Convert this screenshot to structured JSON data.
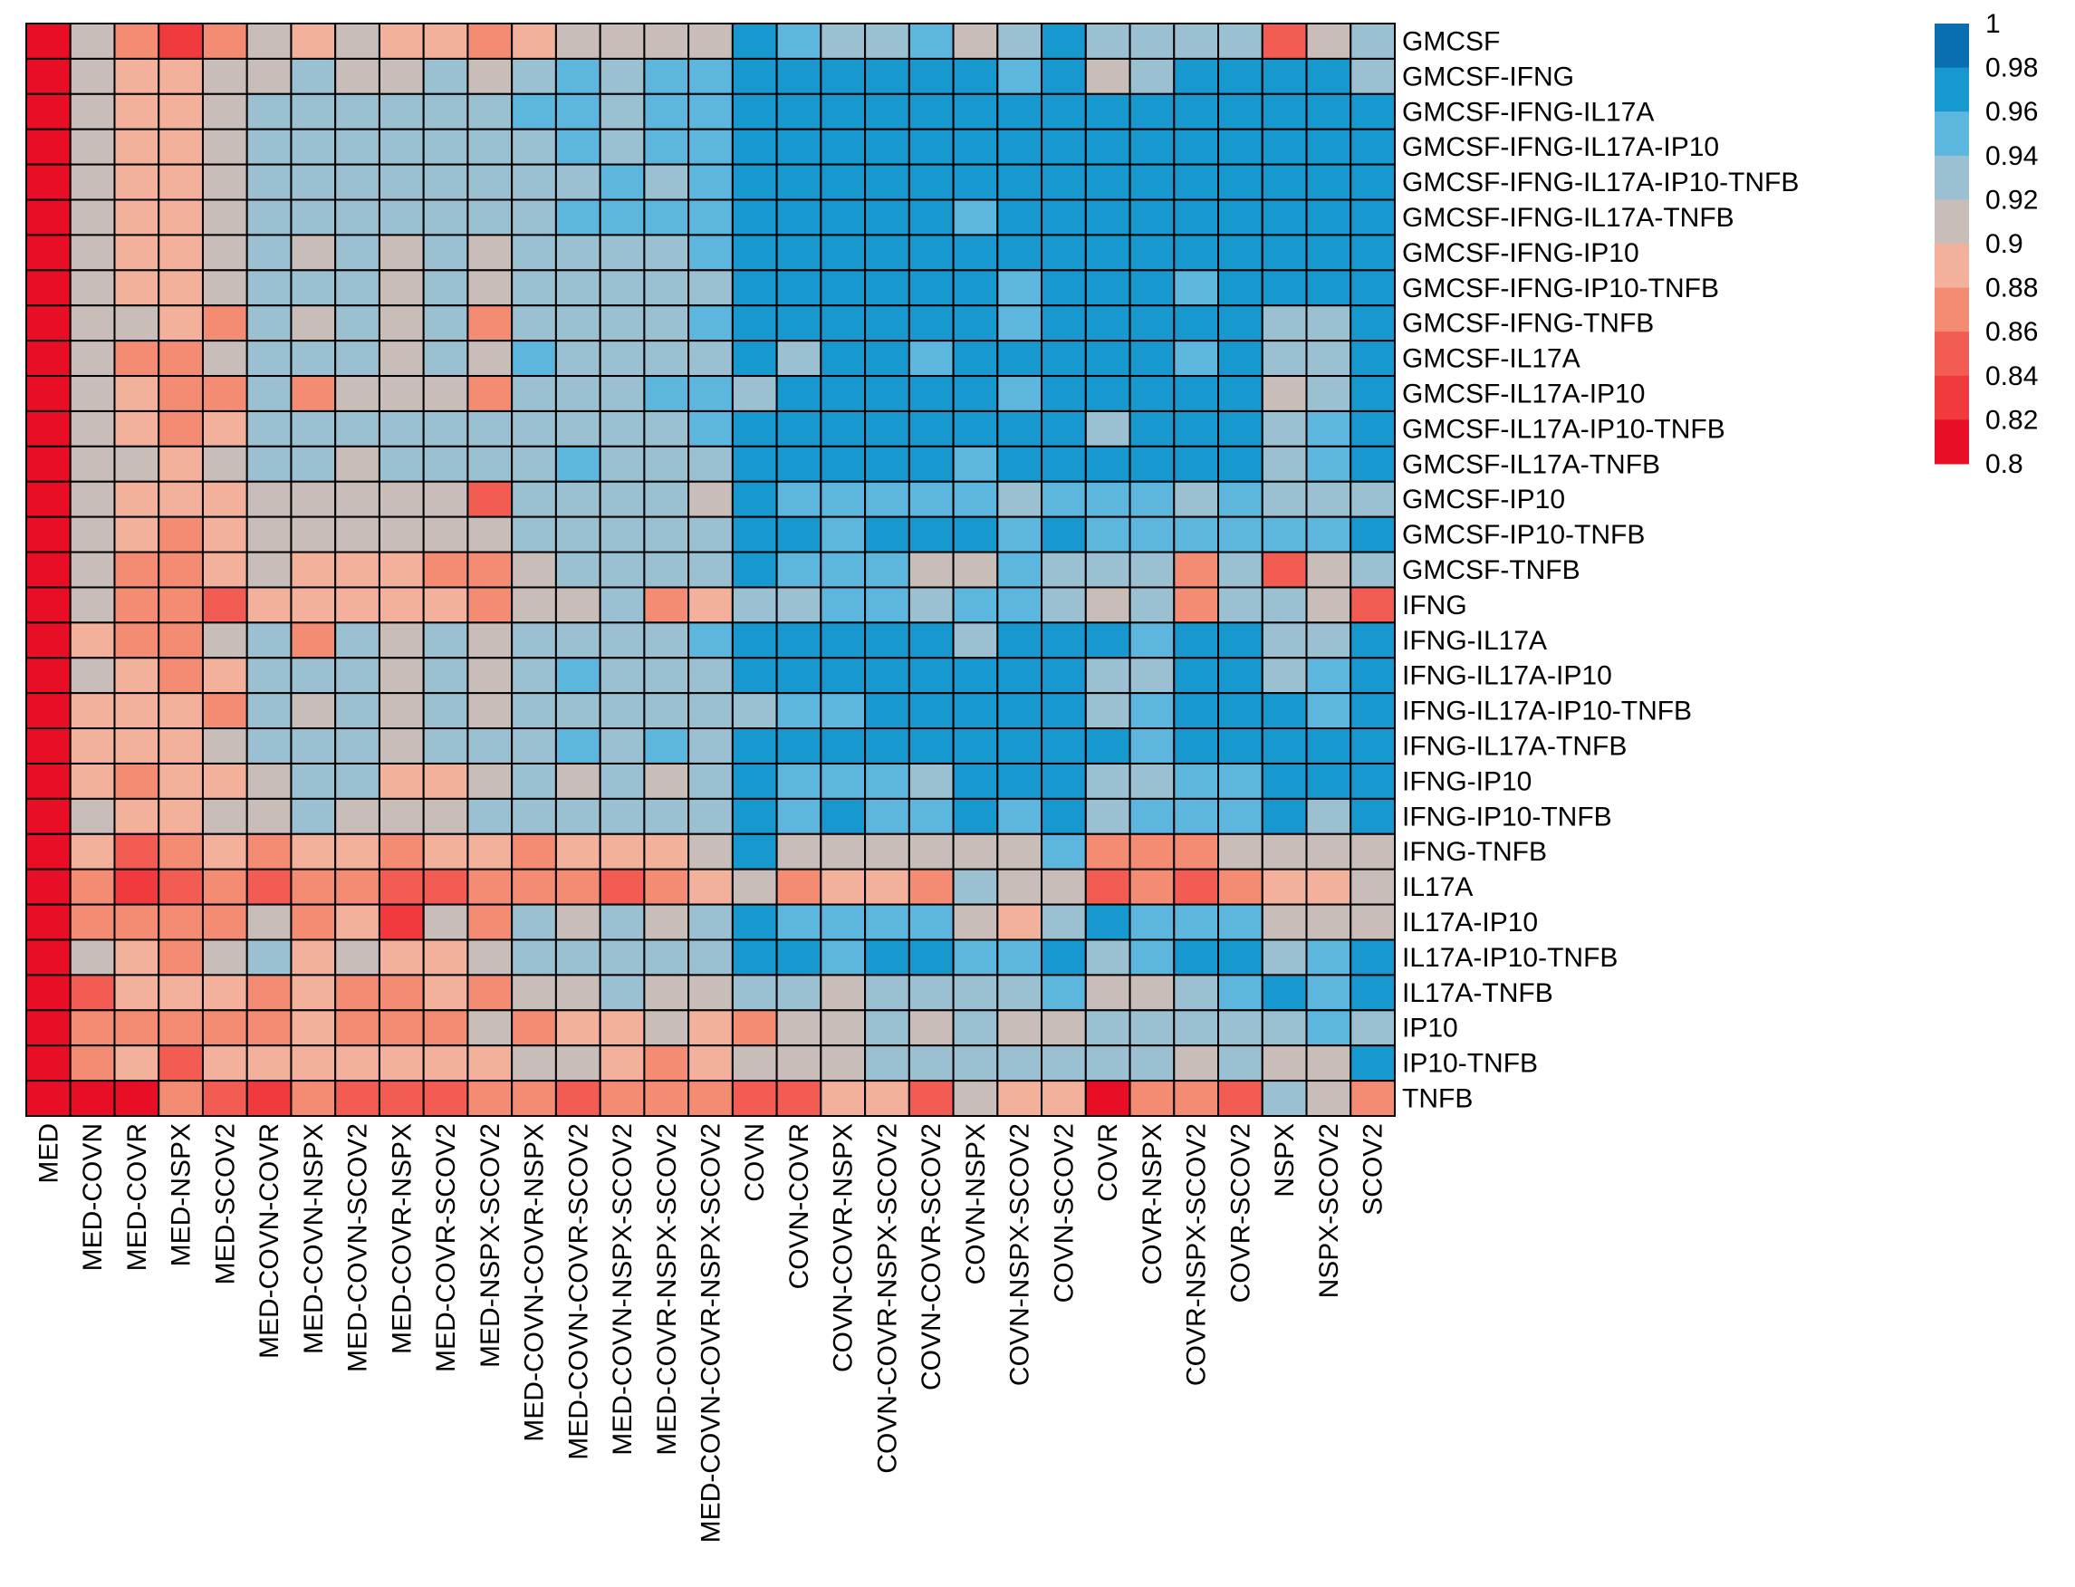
{
  "chart_data": {
    "type": "heatmap",
    "rows": [
      "GMCSF",
      "GMCSF-IFNG",
      "GMCSF-IFNG-IL17A",
      "GMCSF-IFNG-IL17A-IP10",
      "GMCSF-IFNG-IL17A-IP10-TNFB",
      "GMCSF-IFNG-IL17A-TNFB",
      "GMCSF-IFNG-IP10",
      "GMCSF-IFNG-IP10-TNFB",
      "GMCSF-IFNG-TNFB",
      "GMCSF-IL17A",
      "GMCSF-IL17A-IP10",
      "GMCSF-IL17A-IP10-TNFB",
      "GMCSF-IL17A-TNFB",
      "GMCSF-IP10",
      "GMCSF-IP10-TNFB",
      "GMCSF-TNFB",
      "IFNG",
      "IFNG-IL17A",
      "IFNG-IL17A-IP10",
      "IFNG-IL17A-IP10-TNFB",
      "IFNG-IL17A-TNFB",
      "IFNG-IP10",
      "IFNG-IP10-TNFB",
      "IFNG-TNFB",
      "IL17A",
      "IL17A-IP10",
      "IL17A-IP10-TNFB",
      "IL17A-TNFB",
      "IP10",
      "IP10-TNFB",
      "TNFB"
    ],
    "columns": [
      "MED",
      "MED-COVN",
      "MED-COVR",
      "MED-NSPX",
      "MED-SCOV2",
      "MED-COVN-COVR",
      "MED-COVN-NSPX",
      "MED-COVN-SCOV2",
      "MED-COVR-NSPX",
      "MED-COVR-SCOV2",
      "MED-NSPX-SCOV2",
      "MED-COVN-COVR-NSPX",
      "MED-COVN-COVR-SCOV2",
      "MED-COVN-NSPX-SCOV2",
      "MED-COVR-NSPX-SCOV2",
      "MED-COVN-COVR-NSPX-SCOV2",
      "COVN",
      "COVN-COVR",
      "COVN-COVR-NSPX",
      "COVN-COVR-NSPX-SCOV2",
      "COVN-COVR-SCOV2",
      "COVN-NSPX",
      "COVN-NSPX-SCOV2",
      "COVN-SCOV2",
      "COVR",
      "COVR-NSPX",
      "COVR-NSPX-SCOV2",
      "COVR-SCOV2",
      "NSPX",
      "NSPX-SCOV2",
      "SCOV2"
    ],
    "values": [
      [
        0.8,
        0.91,
        0.88,
        0.83,
        0.88,
        0.91,
        0.89,
        0.91,
        0.89,
        0.89,
        0.88,
        0.89,
        0.91,
        0.91,
        0.91,
        0.91,
        0.98,
        0.95,
        0.94,
        0.94,
        0.95,
        0.91,
        0.94,
        0.97,
        0.93,
        0.93,
        0.94,
        0.93,
        0.85,
        0.91,
        0.93
      ],
      [
        0.8,
        0.91,
        0.89,
        0.89,
        0.91,
        0.91,
        0.93,
        0.91,
        0.91,
        0.92,
        0.91,
        0.94,
        0.96,
        0.94,
        0.95,
        0.95,
        0.98,
        0.97,
        0.97,
        0.97,
        0.97,
        0.97,
        0.95,
        0.97,
        0.91,
        0.94,
        0.97,
        0.97,
        0.97,
        0.97,
        0.94
      ],
      [
        0.8,
        0.91,
        0.89,
        0.89,
        0.91,
        0.93,
        0.92,
        0.93,
        0.92,
        0.93,
        0.92,
        0.95,
        0.96,
        0.94,
        0.95,
        0.95,
        0.98,
        0.98,
        0.97,
        0.97,
        0.97,
        0.98,
        0.97,
        0.97,
        0.97,
        0.97,
        0.97,
        0.97,
        0.97,
        0.97,
        0.98
      ],
      [
        0.8,
        0.9,
        0.89,
        0.89,
        0.9,
        0.93,
        0.92,
        0.93,
        0.92,
        0.93,
        0.92,
        0.94,
        0.95,
        0.94,
        0.95,
        0.95,
        0.97,
        0.98,
        0.97,
        0.97,
        0.97,
        0.98,
        0.97,
        0.97,
        0.97,
        0.97,
        0.97,
        0.97,
        0.97,
        0.97,
        0.97
      ],
      [
        0.8,
        0.9,
        0.89,
        0.89,
        0.9,
        0.93,
        0.93,
        0.92,
        0.92,
        0.93,
        0.92,
        0.94,
        0.94,
        0.95,
        0.94,
        0.95,
        0.97,
        0.98,
        0.97,
        0.97,
        0.97,
        0.98,
        0.97,
        0.97,
        0.97,
        0.98,
        0.97,
        0.97,
        0.98,
        0.97,
        0.98
      ],
      [
        0.8,
        0.9,
        0.89,
        0.89,
        0.91,
        0.93,
        0.92,
        0.93,
        0.92,
        0.93,
        0.92,
        0.94,
        0.95,
        0.95,
        0.95,
        0.95,
        0.97,
        0.98,
        0.97,
        0.97,
        0.98,
        0.96,
        0.97,
        0.98,
        0.98,
        0.97,
        0.98,
        0.97,
        0.97,
        0.98,
        0.98
      ],
      [
        0.8,
        0.91,
        0.89,
        0.89,
        0.9,
        0.93,
        0.91,
        0.93,
        0.91,
        0.92,
        0.91,
        0.94,
        0.94,
        0.94,
        0.94,
        0.95,
        0.97,
        0.98,
        0.97,
        0.97,
        0.97,
        0.98,
        0.97,
        0.97,
        0.97,
        0.97,
        0.97,
        0.97,
        0.97,
        0.97,
        0.98
      ],
      [
        0.8,
        0.91,
        0.89,
        0.89,
        0.9,
        0.92,
        0.93,
        0.92,
        0.91,
        0.92,
        0.91,
        0.93,
        0.94,
        0.94,
        0.94,
        0.94,
        0.97,
        0.97,
        0.97,
        0.97,
        0.97,
        0.97,
        0.95,
        0.97,
        0.97,
        0.97,
        0.95,
        0.97,
        0.97,
        0.97,
        0.97
      ],
      [
        0.8,
        0.91,
        0.91,
        0.89,
        0.87,
        0.93,
        0.91,
        0.92,
        0.91,
        0.92,
        0.88,
        0.93,
        0.94,
        0.94,
        0.94,
        0.95,
        0.97,
        0.97,
        0.97,
        0.97,
        0.98,
        0.97,
        0.95,
        0.97,
        0.98,
        0.97,
        0.97,
        0.98,
        0.93,
        0.93,
        0.97
      ],
      [
        0.8,
        0.91,
        0.87,
        0.88,
        0.91,
        0.93,
        0.93,
        0.93,
        0.91,
        0.92,
        0.91,
        0.96,
        0.94,
        0.94,
        0.94,
        0.94,
        0.97,
        0.93,
        0.97,
        0.97,
        0.96,
        0.98,
        0.97,
        0.97,
        0.97,
        0.97,
        0.96,
        0.98,
        0.93,
        0.93,
        0.97
      ],
      [
        0.8,
        0.91,
        0.89,
        0.88,
        0.88,
        0.93,
        0.88,
        0.91,
        0.91,
        0.91,
        0.88,
        0.93,
        0.94,
        0.94,
        0.95,
        0.95,
        0.94,
        0.98,
        0.97,
        0.97,
        0.97,
        0.97,
        0.96,
        0.97,
        0.97,
        0.98,
        0.97,
        0.97,
        0.9,
        0.93,
        0.97
      ],
      [
        0.8,
        0.9,
        0.89,
        0.88,
        0.89,
        0.93,
        0.93,
        0.93,
        0.92,
        0.93,
        0.92,
        0.94,
        0.94,
        0.94,
        0.94,
        0.95,
        0.97,
        0.98,
        0.97,
        0.97,
        0.97,
        0.97,
        0.97,
        0.97,
        0.93,
        0.97,
        0.97,
        0.97,
        0.94,
        0.96,
        0.97
      ],
      [
        0.8,
        0.9,
        0.91,
        0.89,
        0.9,
        0.93,
        0.92,
        0.91,
        0.93,
        0.92,
        0.92,
        0.94,
        0.95,
        0.94,
        0.94,
        0.94,
        0.97,
        0.98,
        0.97,
        0.98,
        0.98,
        0.96,
        0.97,
        0.98,
        0.98,
        0.98,
        0.98,
        0.98,
        0.94,
        0.96,
        0.98
      ],
      [
        0.8,
        0.91,
        0.89,
        0.89,
        0.89,
        0.91,
        0.91,
        0.91,
        0.91,
        0.91,
        0.85,
        0.93,
        0.93,
        0.93,
        0.92,
        0.91,
        0.98,
        0.95,
        0.95,
        0.95,
        0.95,
        0.95,
        0.94,
        0.95,
        0.95,
        0.95,
        0.94,
        0.95,
        0.94,
        0.94,
        0.94
      ],
      [
        0.8,
        0.9,
        0.89,
        0.88,
        0.89,
        0.91,
        0.91,
        0.91,
        0.91,
        0.91,
        0.9,
        0.93,
        0.93,
        0.93,
        0.92,
        0.93,
        0.97,
        0.97,
        0.96,
        0.97,
        0.97,
        0.97,
        0.95,
        0.97,
        0.95,
        0.95,
        0.96,
        0.96,
        0.96,
        0.96,
        0.97
      ],
      [
        0.8,
        0.91,
        0.88,
        0.88,
        0.89,
        0.9,
        0.89,
        0.89,
        0.89,
        0.88,
        0.88,
        0.91,
        0.92,
        0.92,
        0.92,
        0.92,
        0.97,
        0.95,
        0.95,
        0.95,
        0.91,
        0.91,
        0.95,
        0.94,
        0.93,
        0.93,
        0.88,
        0.93,
        0.85,
        0.91,
        0.93
      ],
      [
        0.8,
        0.9,
        0.88,
        0.88,
        0.85,
        0.89,
        0.89,
        0.89,
        0.89,
        0.89,
        0.88,
        0.91,
        0.91,
        0.93,
        0.88,
        0.89,
        0.94,
        0.94,
        0.95,
        0.95,
        0.94,
        0.96,
        0.95,
        0.94,
        0.91,
        0.94,
        0.88,
        0.94,
        0.93,
        0.91,
        0.85
      ],
      [
        0.8,
        0.89,
        0.88,
        0.88,
        0.91,
        0.93,
        0.88,
        0.93,
        0.91,
        0.92,
        0.91,
        0.93,
        0.94,
        0.94,
        0.94,
        0.95,
        0.97,
        0.98,
        0.98,
        0.97,
        0.98,
        0.94,
        0.97,
        0.98,
        0.97,
        0.95,
        0.97,
        0.98,
        0.93,
        0.93,
        0.97
      ],
      [
        0.8,
        0.91,
        0.89,
        0.88,
        0.89,
        0.93,
        0.92,
        0.93,
        0.91,
        0.92,
        0.91,
        0.93,
        0.96,
        0.93,
        0.93,
        0.94,
        0.98,
        0.98,
        0.97,
        0.97,
        0.97,
        0.98,
        0.97,
        0.98,
        0.93,
        0.93,
        0.97,
        0.97,
        0.94,
        0.95,
        0.97
      ],
      [
        0.8,
        0.89,
        0.89,
        0.89,
        0.88,
        0.92,
        0.91,
        0.92,
        0.91,
        0.92,
        0.91,
        0.93,
        0.94,
        0.94,
        0.94,
        0.94,
        0.94,
        0.96,
        0.96,
        0.97,
        0.97,
        0.97,
        0.97,
        0.98,
        0.93,
        0.96,
        0.97,
        0.97,
        0.97,
        0.96,
        0.98
      ],
      [
        0.8,
        0.89,
        0.89,
        0.89,
        0.9,
        0.93,
        0.92,
        0.93,
        0.91,
        0.93,
        0.92,
        0.94,
        0.96,
        0.94,
        0.96,
        0.94,
        0.97,
        0.97,
        0.97,
        0.97,
        0.97,
        0.97,
        0.97,
        0.97,
        0.97,
        0.96,
        0.97,
        0.97,
        0.97,
        0.98,
        0.98
      ],
      [
        0.8,
        0.89,
        0.88,
        0.89,
        0.89,
        0.91,
        0.93,
        0.93,
        0.89,
        0.89,
        0.91,
        0.94,
        0.91,
        0.93,
        0.91,
        0.93,
        0.97,
        0.96,
        0.96,
        0.95,
        0.94,
        0.98,
        0.97,
        0.97,
        0.93,
        0.93,
        0.96,
        0.96,
        0.97,
        0.97,
        0.97
      ],
      [
        0.8,
        0.91,
        0.89,
        0.89,
        0.9,
        0.91,
        0.92,
        0.91,
        0.91,
        0.91,
        0.92,
        0.93,
        0.93,
        0.93,
        0.93,
        0.94,
        0.97,
        0.96,
        0.97,
        0.96,
        0.95,
        0.97,
        0.96,
        0.97,
        0.94,
        0.95,
        0.95,
        0.96,
        0.97,
        0.94,
        0.97
      ],
      [
        0.8,
        0.89,
        0.86,
        0.88,
        0.89,
        0.88,
        0.89,
        0.89,
        0.87,
        0.89,
        0.89,
        0.88,
        0.89,
        0.89,
        0.89,
        0.91,
        0.97,
        0.91,
        0.91,
        0.91,
        0.91,
        0.91,
        0.91,
        0.95,
        0.87,
        0.88,
        0.88,
        0.91,
        0.91,
        0.91,
        0.91
      ],
      [
        0.8,
        0.88,
        0.84,
        0.86,
        0.88,
        0.86,
        0.87,
        0.88,
        0.85,
        0.86,
        0.88,
        0.88,
        0.88,
        0.86,
        0.87,
        0.89,
        0.91,
        0.88,
        0.89,
        0.89,
        0.88,
        0.93,
        0.91,
        0.91,
        0.86,
        0.88,
        0.86,
        0.88,
        0.89,
        0.89,
        0.91
      ],
      [
        0.8,
        0.88,
        0.88,
        0.88,
        0.88,
        0.91,
        0.88,
        0.89,
        0.83,
        0.91,
        0.88,
        0.92,
        0.91,
        0.92,
        0.91,
        0.94,
        0.97,
        0.96,
        0.96,
        0.96,
        0.95,
        0.91,
        0.89,
        0.94,
        0.97,
        0.95,
        0.96,
        0.96,
        0.91,
        0.91,
        0.91
      ],
      [
        0.8,
        0.91,
        0.89,
        0.88,
        0.91,
        0.94,
        0.89,
        0.91,
        0.89,
        0.89,
        0.91,
        0.94,
        0.93,
        0.93,
        0.93,
        0.94,
        0.97,
        0.98,
        0.96,
        0.97,
        0.98,
        0.95,
        0.96,
        0.98,
        0.93,
        0.96,
        0.97,
        0.97,
        0.94,
        0.96,
        0.97
      ],
      [
        0.8,
        0.86,
        0.89,
        0.89,
        0.89,
        0.88,
        0.89,
        0.88,
        0.88,
        0.89,
        0.88,
        0.91,
        0.91,
        0.94,
        0.91,
        0.91,
        0.93,
        0.93,
        0.91,
        0.94,
        0.94,
        0.94,
        0.94,
        0.95,
        0.91,
        0.91,
        0.94,
        0.95,
        0.97,
        0.96,
        0.98
      ],
      [
        0.8,
        0.87,
        0.88,
        0.88,
        0.88,
        0.88,
        0.89,
        0.88,
        0.88,
        0.88,
        0.91,
        0.88,
        0.89,
        0.89,
        0.91,
        0.89,
        0.88,
        0.91,
        0.91,
        0.94,
        0.91,
        0.94,
        0.91,
        0.91,
        0.93,
        0.93,
        0.93,
        0.93,
        0.93,
        0.96,
        0.94
      ],
      [
        0.8,
        0.88,
        0.89,
        0.86,
        0.89,
        0.89,
        0.89,
        0.89,
        0.89,
        0.89,
        0.89,
        0.91,
        0.91,
        0.89,
        0.88,
        0.89,
        0.91,
        0.91,
        0.91,
        0.93,
        0.93,
        0.93,
        0.93,
        0.93,
        0.93,
        0.93,
        0.91,
        0.94,
        0.91,
        0.91,
        0.97
      ],
      [
        0.8,
        0.82,
        0.82,
        0.88,
        0.86,
        0.83,
        0.88,
        0.86,
        0.86,
        0.86,
        0.87,
        0.88,
        0.86,
        0.88,
        0.87,
        0.88,
        0.86,
        0.86,
        0.89,
        0.89,
        0.86,
        0.91,
        0.89,
        0.89,
        0.81,
        0.88,
        0.88,
        0.86,
        0.93,
        0.91,
        0.88
      ]
    ],
    "legend": {
      "position": "right",
      "ticks": [
        "1",
        "0.98",
        "0.96",
        "0.94",
        "0.92",
        "0.9",
        "0.88",
        "0.86",
        "0.84",
        "0.82",
        "0.8"
      ],
      "colors": [
        "#0a6fb0",
        "#1799cf",
        "#5cb6de",
        "#9bc0d2",
        "#c8bdb8",
        "#f3b19b",
        "#f48c74",
        "#f35c52",
        "#f03a3e",
        "#e70e25"
      ]
    },
    "color_range": [
      0.8,
      1.0
    ],
    "grid": true,
    "title": "",
    "xlabel": "",
    "ylabel": ""
  }
}
